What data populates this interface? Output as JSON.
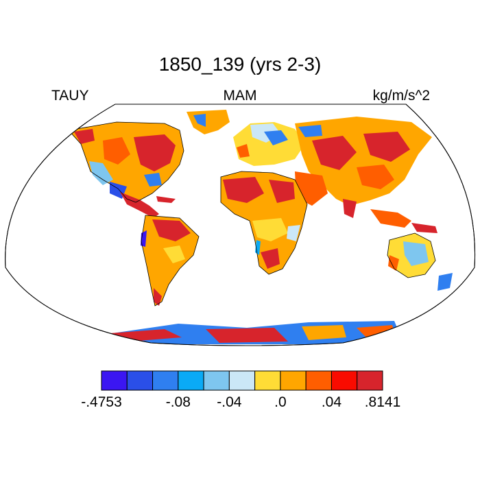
{
  "title": "1850_139 (yrs 2-3)",
  "left_label": "TAUY",
  "center_label": "MAM",
  "right_label": "kg/m/s^2",
  "colorbar": {
    "colors": [
      "#3b16f2",
      "#2a4fe8",
      "#2f7ff0",
      "#0aaaf6",
      "#7ec6ef",
      "#cbe7f7",
      "#ffdc36",
      "#ffa600",
      "#ff5e00",
      "#f90b00",
      "#d7242c"
    ],
    "labels": [
      {
        "text": "-.4753",
        "boundary": 0
      },
      {
        "text": "-.08",
        "boundary": 3
      },
      {
        "text": "-.04",
        "boundary": 5
      },
      {
        "text": ".0",
        "boundary": 7
      },
      {
        "text": ".04",
        "boundary": 9
      },
      {
        "text": ".8141",
        "boundary": 11
      }
    ]
  }
}
